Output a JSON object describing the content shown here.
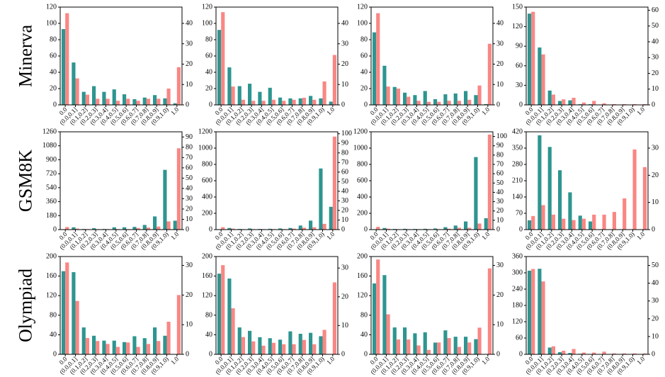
{
  "colors": {
    "teal": "#2E9590",
    "salmon": "#F98784"
  },
  "categories": [
    "0.0",
    "(0.0,0.1]",
    "(0.1,0.2]",
    "(0.2,0.3]",
    "(0.3,0.4]",
    "(0.4,0.5]",
    "(0.5,0.6]",
    "(0.6,0.7]",
    "(0.7,0.8]",
    "(0.8,0.9]",
    "(0.9,1.0)",
    "1.0"
  ],
  "rows": [
    "Minerva",
    "GSM8K",
    "Olympiad"
  ],
  "chart_data": [
    {
      "type": "bar",
      "row": "Minerva",
      "col": 0,
      "left_axis": {
        "ylim": [
          0,
          120
        ],
        "ticks": [
          0,
          20,
          40,
          60,
          80,
          100,
          120
        ]
      },
      "right_axis": {
        "ylim": [
          0,
          48
        ],
        "ticks": [
          0,
          10,
          20,
          30,
          40
        ]
      },
      "series": [
        {
          "color": "teal",
          "axis": "left",
          "values": [
            93,
            52,
            16,
            23,
            16,
            19,
            13,
            7,
            9,
            12,
            8,
            2
          ]
        },
        {
          "color": "salmon",
          "axis": "right",
          "values": [
            45,
            13,
            5,
            3,
            3,
            2,
            3,
            2,
            3,
            3,
            8,
            18.5
          ]
        }
      ]
    },
    {
      "type": "bar",
      "row": "Minerva",
      "col": 1,
      "left_axis": {
        "ylim": [
          0,
          120
        ],
        "ticks": [
          0,
          20,
          40,
          60,
          80,
          100,
          120
        ]
      },
      "right_axis": {
        "ylim": [
          0,
          48
        ],
        "ticks": [
          0,
          10,
          20,
          30,
          40
        ]
      },
      "series": [
        {
          "color": "teal",
          "axis": "left",
          "values": [
            92,
            46,
            23,
            26,
            16,
            21,
            9,
            8,
            8,
            11,
            8,
            4
          ]
        },
        {
          "color": "salmon",
          "axis": "right",
          "values": [
            45.5,
            9,
            2.5,
            2,
            2,
            2.5,
            2,
            2.5,
            3.5,
            2.5,
            11.5,
            24.5
          ]
        }
      ]
    },
    {
      "type": "bar",
      "row": "Minerva",
      "col": 2,
      "left_axis": {
        "ylim": [
          0,
          120
        ],
        "ticks": [
          0,
          20,
          40,
          60,
          80,
          100,
          120
        ]
      },
      "right_axis": {
        "ylim": [
          0,
          48
        ],
        "ticks": [
          0,
          10,
          20,
          30,
          40
        ]
      },
      "series": [
        {
          "color": "teal",
          "axis": "left",
          "values": [
            89,
            48,
            22,
            15,
            12,
            17,
            7,
            13,
            14,
            17,
            12,
            1
          ]
        },
        {
          "color": "salmon",
          "axis": "right",
          "values": [
            45,
            9,
            8,
            4,
            2,
            1.5,
            1.5,
            2,
            2,
            2.5,
            9.5,
            30
          ]
        }
      ]
    },
    {
      "type": "bar",
      "row": "Minerva",
      "col": 3,
      "left_axis": {
        "ylim": [
          0,
          150
        ],
        "ticks": [
          0,
          30,
          60,
          90,
          120,
          150
        ]
      },
      "right_axis": {
        "ylim": [
          0,
          62
        ],
        "ticks": [
          0,
          10,
          20,
          30,
          40,
          50,
          60
        ]
      },
      "series": [
        {
          "color": "teal",
          "axis": "left",
          "values": [
            140,
            88,
            22,
            6,
            7,
            1,
            1,
            0.5,
            0.5,
            0.5,
            0.5,
            0
          ]
        },
        {
          "color": "salmon",
          "axis": "right",
          "values": [
            59,
            32,
            6.5,
            3.5,
            4.5,
            1.5,
            2.5,
            1,
            0.5,
            0.5,
            0.5,
            0.5
          ]
        }
      ]
    },
    {
      "type": "bar",
      "row": "GSM8K",
      "col": 0,
      "left_axis": {
        "ylim": [
          0,
          1260
        ],
        "ticks": [
          0,
          180,
          360,
          540,
          720,
          900,
          1080,
          1260
        ]
      },
      "right_axis": {
        "ylim": [
          0,
          95
        ],
        "ticks": [
          0,
          10,
          20,
          30,
          40,
          50,
          60,
          70,
          80,
          90
        ]
      },
      "series": [
        {
          "color": "teal",
          "axis": "left",
          "values": [
            5,
            30,
            8,
            18,
            8,
            30,
            30,
            35,
            60,
            170,
            770,
            115
          ]
        },
        {
          "color": "salmon",
          "axis": "right",
          "values": [
            2.5,
            1,
            0.5,
            0.5,
            0.5,
            0.5,
            0.5,
            1.5,
            2,
            3,
            8,
            79
          ]
        }
      ]
    },
    {
      "type": "bar",
      "row": "GSM8K",
      "col": 1,
      "left_axis": {
        "ylim": [
          0,
          1200
        ],
        "ticks": [
          0,
          200,
          400,
          600,
          800,
          1000,
          1200
        ]
      },
      "right_axis": {
        "ylim": [
          0,
          102
        ],
        "ticks": [
          0,
          10,
          20,
          30,
          40,
          50,
          60,
          70,
          80,
          90,
          100
        ]
      },
      "series": [
        {
          "color": "teal",
          "axis": "left",
          "values": [
            5,
            20,
            8,
            14,
            8,
            10,
            14,
            20,
            50,
            110,
            750,
            280
          ]
        },
        {
          "color": "salmon",
          "axis": "right",
          "values": [
            2.5,
            1,
            0.5,
            0.5,
            0.5,
            0.5,
            0.5,
            1,
            2,
            2.5,
            6,
            97
          ]
        }
      ]
    },
    {
      "type": "bar",
      "row": "GSM8K",
      "col": 2,
      "left_axis": {
        "ylim": [
          0,
          1200
        ],
        "ticks": [
          0,
          200,
          400,
          600,
          800,
          1000,
          1200
        ]
      },
      "right_axis": {
        "ylim": [
          0,
          105
        ],
        "ticks": [
          0,
          10,
          20,
          30,
          40,
          50,
          60,
          70,
          80,
          90,
          100
        ]
      },
      "series": [
        {
          "color": "teal",
          "axis": "left",
          "values": [
            5,
            20,
            8,
            10,
            8,
            10,
            14,
            30,
            50,
            100,
            890,
            140
          ]
        },
        {
          "color": "salmon",
          "axis": "right",
          "values": [
            3,
            1,
            0.5,
            0.5,
            0.5,
            0.5,
            0.5,
            1,
            2,
            2,
            6.5,
            102
          ]
        }
      ]
    },
    {
      "type": "bar",
      "row": "GSM8K",
      "col": 3,
      "left_axis": {
        "ylim": [
          0,
          420
        ],
        "ticks": [
          0,
          70,
          140,
          210,
          280,
          350,
          420
        ]
      },
      "right_axis": {
        "ylim": [
          0,
          36
        ],
        "ticks": [
          0,
          10,
          20,
          30
        ]
      },
      "series": [
        {
          "color": "teal",
          "axis": "left",
          "values": [
            40,
            405,
            355,
            255,
            160,
            60,
            35,
            0,
            0,
            0,
            0,
            0
          ]
        },
        {
          "color": "salmon",
          "axis": "right",
          "values": [
            5,
            9,
            5.5,
            4,
            3.5,
            4,
            5.5,
            5.5,
            6.5,
            11.5,
            29.5,
            23
          ]
        }
      ]
    },
    {
      "type": "bar",
      "row": "Olympiad",
      "col": 0,
      "left_axis": {
        "ylim": [
          0,
          200
        ],
        "ticks": [
          0,
          40,
          80,
          120,
          160,
          200
        ]
      },
      "right_axis": {
        "ylim": [
          0,
          33
        ],
        "ticks": [
          0,
          10,
          20,
          30
        ]
      },
      "series": [
        {
          "color": "teal",
          "axis": "left",
          "values": [
            170,
            168,
            55,
            38,
            28,
            28,
            25,
            37,
            33,
            55,
            38,
            0
          ]
        },
        {
          "color": "salmon",
          "axis": "right",
          "values": [
            31,
            18,
            5.5,
            4.5,
            3.5,
            2.5,
            4,
            2.5,
            3.5,
            4.5,
            11,
            20
          ]
        }
      ]
    },
    {
      "type": "bar",
      "row": "Olympiad",
      "col": 1,
      "left_axis": {
        "ylim": [
          0,
          200
        ],
        "ticks": [
          0,
          40,
          80,
          120,
          160,
          200
        ]
      },
      "right_axis": {
        "ylim": [
          0,
          34
        ],
        "ticks": [
          0,
          10,
          20,
          30
        ]
      },
      "series": [
        {
          "color": "teal",
          "axis": "left",
          "values": [
            165,
            155,
            55,
            48,
            35,
            33,
            30,
            47,
            42,
            44,
            37,
            0
          ]
        },
        {
          "color": "salmon",
          "axis": "right",
          "values": [
            31,
            16,
            6,
            4.5,
            3,
            4,
            3.5,
            3.5,
            5,
            3.5,
            8.5,
            25
          ]
        }
      ]
    },
    {
      "type": "bar",
      "row": "Olympiad",
      "col": 2,
      "left_axis": {
        "ylim": [
          0,
          200
        ],
        "ticks": [
          0,
          40,
          80,
          120,
          160,
          200
        ]
      },
      "right_axis": {
        "ylim": [
          0,
          33
        ],
        "ticks": [
          0,
          10,
          20,
          30
        ]
      },
      "series": [
        {
          "color": "teal",
          "axis": "left",
          "values": [
            145,
            162,
            55,
            55,
            43,
            45,
            24,
            49,
            36,
            36,
            31,
            0
          ]
        },
        {
          "color": "salmon",
          "axis": "right",
          "values": [
            32,
            13.5,
            5,
            5,
            3,
            1.5,
            4,
            5.5,
            2.5,
            4,
            9,
            29
          ]
        }
      ]
    },
    {
      "type": "bar",
      "row": "Olympiad",
      "col": 3,
      "left_axis": {
        "ylim": [
          0,
          360
        ],
        "ticks": [
          0,
          60,
          120,
          180,
          240,
          300,
          360
        ]
      },
      "right_axis": {
        "ylim": [
          0,
          55
        ],
        "ticks": [
          0,
          10,
          20,
          30,
          40,
          50
        ]
      },
      "series": [
        {
          "color": "teal",
          "axis": "left",
          "values": [
            308,
            315,
            25,
            8,
            5,
            2,
            1,
            1,
            0.5,
            0.5,
            0.5,
            0
          ]
        },
        {
          "color": "salmon",
          "axis": "right",
          "values": [
            48,
            41,
            4.5,
            2,
            3,
            1,
            1,
            1.5,
            0.5,
            0.5,
            0.5,
            0.5
          ]
        }
      ]
    }
  ]
}
